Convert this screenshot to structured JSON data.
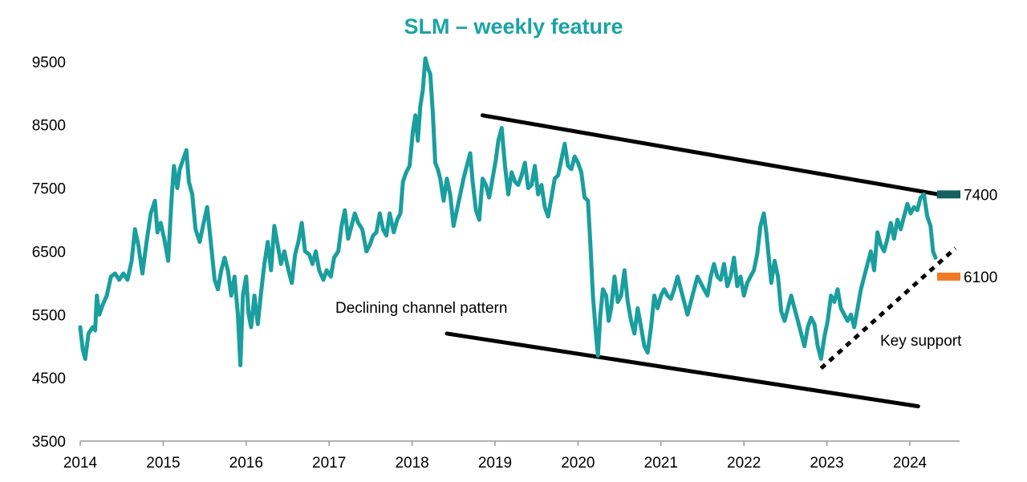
{
  "chart_data": {
    "type": "line",
    "title": "SLM – weekly feature",
    "xlabel": "",
    "ylabel": "",
    "xlim": [
      2014,
      2024.6
    ],
    "ylim": [
      3500,
      9700
    ],
    "x_ticks": [
      "2014",
      "2015",
      "2016",
      "2017",
      "2018",
      "2019",
      "2020",
      "2021",
      "2022",
      "2023",
      "2024"
    ],
    "y_ticks": [
      "3500",
      "4500",
      "5500",
      "6500",
      "7500",
      "8500",
      "9500"
    ],
    "grid": false,
    "legend": "none",
    "series": [
      {
        "color": "#1a9e9e",
        "points": [
          [
            2014.0,
            5300
          ],
          [
            2014.03,
            4950
          ],
          [
            2014.06,
            4800
          ],
          [
            2014.1,
            5200
          ],
          [
            2014.15,
            5300
          ],
          [
            2014.18,
            5250
          ],
          [
            2014.2,
            5800
          ],
          [
            2014.23,
            5500
          ],
          [
            2014.27,
            5650
          ],
          [
            2014.32,
            5800
          ],
          [
            2014.37,
            6100
          ],
          [
            2014.42,
            6150
          ],
          [
            2014.47,
            6050
          ],
          [
            2014.52,
            6150
          ],
          [
            2014.57,
            6050
          ],
          [
            2014.62,
            6350
          ],
          [
            2014.66,
            6850
          ],
          [
            2014.7,
            6600
          ],
          [
            2014.75,
            6150
          ],
          [
            2014.8,
            6650
          ],
          [
            2014.85,
            7100
          ],
          [
            2014.9,
            7300
          ],
          [
            2014.93,
            6800
          ],
          [
            2014.97,
            6950
          ],
          [
            2015.02,
            6650
          ],
          [
            2015.06,
            6350
          ],
          [
            2015.1,
            7300
          ],
          [
            2015.13,
            7850
          ],
          [
            2015.17,
            7500
          ],
          [
            2015.2,
            7800
          ],
          [
            2015.24,
            7950
          ],
          [
            2015.28,
            8100
          ],
          [
            2015.31,
            7600
          ],
          [
            2015.35,
            7400
          ],
          [
            2015.39,
            6850
          ],
          [
            2015.44,
            6650
          ],
          [
            2015.48,
            6900
          ],
          [
            2015.53,
            7200
          ],
          [
            2015.57,
            6700
          ],
          [
            2015.62,
            6050
          ],
          [
            2015.66,
            5900
          ],
          [
            2015.7,
            6200
          ],
          [
            2015.74,
            6400
          ],
          [
            2015.78,
            6200
          ],
          [
            2015.82,
            5800
          ],
          [
            2015.86,
            6100
          ],
          [
            2015.9,
            5500
          ],
          [
            2015.93,
            4700
          ],
          [
            2015.96,
            5800
          ],
          [
            2016.0,
            6100
          ],
          [
            2016.03,
            5500
          ],
          [
            2016.06,
            5300
          ],
          [
            2016.1,
            5800
          ],
          [
            2016.14,
            5350
          ],
          [
            2016.18,
            5850
          ],
          [
            2016.22,
            6300
          ],
          [
            2016.26,
            6650
          ],
          [
            2016.3,
            6200
          ],
          [
            2016.34,
            6900
          ],
          [
            2016.38,
            6600
          ],
          [
            2016.42,
            6300
          ],
          [
            2016.46,
            6500
          ],
          [
            2016.51,
            6200
          ],
          [
            2016.55,
            6000
          ],
          [
            2016.59,
            6450
          ],
          [
            2016.63,
            6650
          ],
          [
            2016.67,
            6950
          ],
          [
            2016.71,
            6500
          ],
          [
            2016.76,
            6450
          ],
          [
            2016.8,
            6300
          ],
          [
            2016.84,
            6500
          ],
          [
            2016.88,
            6200
          ],
          [
            2016.93,
            6050
          ],
          [
            2016.97,
            6200
          ],
          [
            2017.02,
            6100
          ],
          [
            2017.06,
            6400
          ],
          [
            2017.11,
            6500
          ],
          [
            2017.15,
            6900
          ],
          [
            2017.19,
            7150
          ],
          [
            2017.23,
            6700
          ],
          [
            2017.27,
            6900
          ],
          [
            2017.31,
            7100
          ],
          [
            2017.35,
            6950
          ],
          [
            2017.4,
            6850
          ],
          [
            2017.45,
            6500
          ],
          [
            2017.49,
            6600
          ],
          [
            2017.53,
            6750
          ],
          [
            2017.57,
            6800
          ],
          [
            2017.61,
            7100
          ],
          [
            2017.65,
            6850
          ],
          [
            2017.69,
            6750
          ],
          [
            2017.73,
            7100
          ],
          [
            2017.78,
            6800
          ],
          [
            2017.82,
            7000
          ],
          [
            2017.86,
            7100
          ],
          [
            2017.89,
            7600
          ],
          [
            2017.93,
            7750
          ],
          [
            2017.97,
            7850
          ],
          [
            2018.01,
            8400
          ],
          [
            2018.04,
            8650
          ],
          [
            2018.07,
            8250
          ],
          [
            2018.1,
            8800
          ],
          [
            2018.13,
            9050
          ],
          [
            2018.16,
            9550
          ],
          [
            2018.19,
            9400
          ],
          [
            2018.22,
            9300
          ],
          [
            2018.25,
            8700
          ],
          [
            2018.28,
            7900
          ],
          [
            2018.31,
            7800
          ],
          [
            2018.34,
            7650
          ],
          [
            2018.38,
            7300
          ],
          [
            2018.42,
            7650
          ],
          [
            2018.46,
            7400
          ],
          [
            2018.5,
            6900
          ],
          [
            2018.54,
            7150
          ],
          [
            2018.58,
            7400
          ],
          [
            2018.62,
            7650
          ],
          [
            2018.66,
            7850
          ],
          [
            2018.7,
            8050
          ],
          [
            2018.73,
            7600
          ],
          [
            2018.77,
            7150
          ],
          [
            2018.81,
            7000
          ],
          [
            2018.85,
            7650
          ],
          [
            2018.89,
            7550
          ],
          [
            2018.93,
            7350
          ],
          [
            2018.97,
            7650
          ],
          [
            2019.01,
            7950
          ],
          [
            2019.04,
            8250
          ],
          [
            2019.08,
            8450
          ],
          [
            2019.12,
            7850
          ],
          [
            2019.16,
            7400
          ],
          [
            2019.2,
            7750
          ],
          [
            2019.24,
            7600
          ],
          [
            2019.28,
            7550
          ],
          [
            2019.32,
            7700
          ],
          [
            2019.36,
            7900
          ],
          [
            2019.4,
            7500
          ],
          [
            2019.44,
            7550
          ],
          [
            2019.48,
            7850
          ],
          [
            2019.52,
            7400
          ],
          [
            2019.56,
            7550
          ],
          [
            2019.6,
            7200
          ],
          [
            2019.64,
            7050
          ],
          [
            2019.68,
            7350
          ],
          [
            2019.72,
            7650
          ],
          [
            2019.76,
            7700
          ],
          [
            2019.8,
            7950
          ],
          [
            2019.84,
            8200
          ],
          [
            2019.88,
            7850
          ],
          [
            2019.92,
            7800
          ],
          [
            2019.96,
            8000
          ],
          [
            2020.0,
            7900
          ],
          [
            2020.04,
            7750
          ],
          [
            2020.08,
            7350
          ],
          [
            2020.12,
            7300
          ],
          [
            2020.15,
            6600
          ],
          [
            2020.18,
            5800
          ],
          [
            2020.21,
            5300
          ],
          [
            2020.24,
            4850
          ],
          [
            2020.27,
            5500
          ],
          [
            2020.3,
            5900
          ],
          [
            2020.34,
            5800
          ],
          [
            2020.37,
            5400
          ],
          [
            2020.4,
            5600
          ],
          [
            2020.44,
            6100
          ],
          [
            2020.48,
            5700
          ],
          [
            2020.52,
            5800
          ],
          [
            2020.56,
            6200
          ],
          [
            2020.6,
            5700
          ],
          [
            2020.64,
            5400
          ],
          [
            2020.68,
            5200
          ],
          [
            2020.72,
            5600
          ],
          [
            2020.76,
            5300
          ],
          [
            2020.8,
            5000
          ],
          [
            2020.84,
            4900
          ],
          [
            2020.88,
            5300
          ],
          [
            2020.92,
            5800
          ],
          [
            2020.96,
            5600
          ],
          [
            2021.0,
            5800
          ],
          [
            2021.04,
            5900
          ],
          [
            2021.08,
            5800
          ],
          [
            2021.12,
            5750
          ],
          [
            2021.16,
            5900
          ],
          [
            2021.2,
            6100
          ],
          [
            2021.24,
            5900
          ],
          [
            2021.28,
            5700
          ],
          [
            2021.32,
            5500
          ],
          [
            2021.36,
            5700
          ],
          [
            2021.4,
            5900
          ],
          [
            2021.44,
            6100
          ],
          [
            2021.48,
            6000
          ],
          [
            2021.52,
            5900
          ],
          [
            2021.56,
            5800
          ],
          [
            2021.6,
            6100
          ],
          [
            2021.64,
            6300
          ],
          [
            2021.68,
            6100
          ],
          [
            2021.72,
            6050
          ],
          [
            2021.76,
            6300
          ],
          [
            2021.8,
            5950
          ],
          [
            2021.84,
            6100
          ],
          [
            2021.88,
            6400
          ],
          [
            2021.92,
            5950
          ],
          [
            2021.96,
            6100
          ],
          [
            2022.0,
            5800
          ],
          [
            2022.04,
            6000
          ],
          [
            2022.08,
            6100
          ],
          [
            2022.12,
            6200
          ],
          [
            2022.16,
            6450
          ],
          [
            2022.2,
            6900
          ],
          [
            2022.24,
            7100
          ],
          [
            2022.27,
            6800
          ],
          [
            2022.3,
            6400
          ],
          [
            2022.33,
            6000
          ],
          [
            2022.37,
            6350
          ],
          [
            2022.41,
            6100
          ],
          [
            2022.45,
            5550
          ],
          [
            2022.49,
            5400
          ],
          [
            2022.53,
            5600
          ],
          [
            2022.57,
            5800
          ],
          [
            2022.61,
            5600
          ],
          [
            2022.65,
            5400
          ],
          [
            2022.69,
            5200
          ],
          [
            2022.73,
            5000
          ],
          [
            2022.77,
            5300
          ],
          [
            2022.81,
            5450
          ],
          [
            2022.85,
            5350
          ],
          [
            2022.89,
            5000
          ],
          [
            2022.93,
            4800
          ],
          [
            2022.97,
            5150
          ],
          [
            2023.01,
            5400
          ],
          [
            2023.05,
            5800
          ],
          [
            2023.09,
            5700
          ],
          [
            2023.13,
            5900
          ],
          [
            2023.17,
            5600
          ],
          [
            2023.21,
            5500
          ],
          [
            2023.25,
            5400
          ],
          [
            2023.29,
            5500
          ],
          [
            2023.33,
            5300
          ],
          [
            2023.37,
            5600
          ],
          [
            2023.41,
            5900
          ],
          [
            2023.45,
            6100
          ],
          [
            2023.49,
            6300
          ],
          [
            2023.53,
            6500
          ],
          [
            2023.57,
            6200
          ],
          [
            2023.61,
            6800
          ],
          [
            2023.65,
            6600
          ],
          [
            2023.69,
            6500
          ],
          [
            2023.73,
            6700
          ],
          [
            2023.77,
            6950
          ],
          [
            2023.81,
            6700
          ],
          [
            2023.85,
            7000
          ],
          [
            2023.89,
            6850
          ],
          [
            2023.93,
            7050
          ],
          [
            2023.97,
            7250
          ],
          [
            2024.01,
            7100
          ],
          [
            2024.05,
            7200
          ],
          [
            2024.09,
            7150
          ],
          [
            2024.13,
            7350
          ],
          [
            2024.17,
            7400
          ],
          [
            2024.21,
            7050
          ],
          [
            2024.25,
            6900
          ],
          [
            2024.28,
            6500
          ],
          [
            2024.31,
            6400
          ]
        ]
      }
    ],
    "annotations": {
      "channel_label": "Declining channel pattern",
      "support_label": "Key support",
      "upper_marker_value": "7400",
      "lower_marker_value": "6100",
      "upper_channel": [
        [
          2018.85,
          8650
        ],
        [
          2024.35,
          7400
        ]
      ],
      "lower_channel": [
        [
          2018.42,
          5200
        ],
        [
          2024.1,
          4050
        ]
      ],
      "support_line": [
        [
          2022.93,
          4650
        ],
        [
          2024.55,
          6550
        ]
      ]
    },
    "colors": {
      "line": "#1a9e9e",
      "title": "#1aa3a3",
      "upper_marker": "#155f5f",
      "lower_marker": "#f07a24",
      "channel": "#000000"
    }
  }
}
